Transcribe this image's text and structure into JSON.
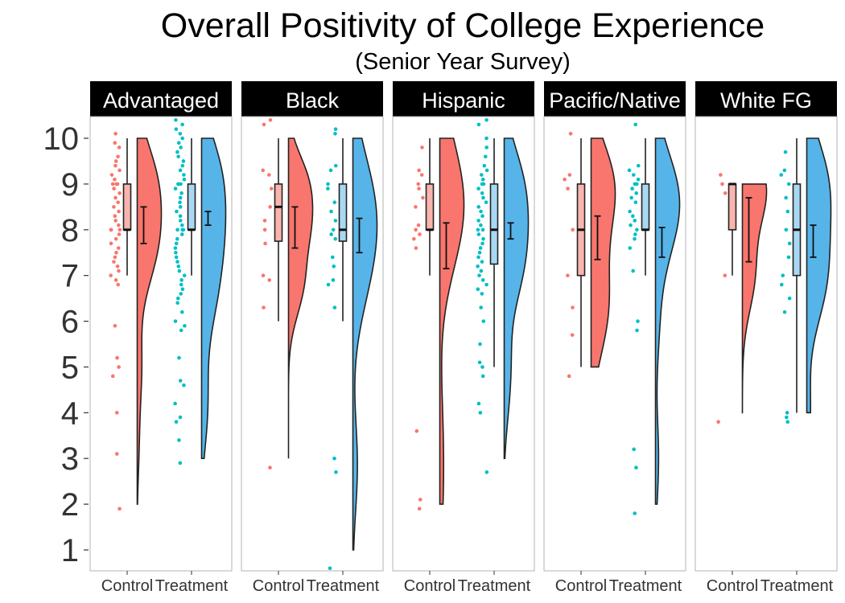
{
  "chart_data": {
    "type": "raincloud",
    "title": "Overall Positivity of College Experience",
    "subtitle": "(Senior Year Survey)",
    "xlabel": "",
    "ylabel": "",
    "ylim": [
      1,
      10
    ],
    "y_ticks": [
      "1",
      "2",
      "3",
      "4",
      "5",
      "6",
      "7",
      "8",
      "9",
      "10"
    ],
    "categories": [
      "Control",
      "Treatment"
    ],
    "grid": false,
    "colors": {
      "Control": "#F8766D",
      "Treatment": "#00BFC4",
      "Treatment_violin": "#56B4E9"
    },
    "panels": [
      {
        "name": "Advantaged",
        "groups": [
          {
            "group": "Control",
            "box": {
              "min": 7,
              "q1": 8,
              "median": 8,
              "q3": 9,
              "max": 10
            },
            "mean": 8.1,
            "ci": [
              7.7,
              8.5
            ],
            "range": [
              2,
              10
            ],
            "points": [
              10.1,
              9.9,
              9.8,
              9.6,
              9.5,
              9.4,
              9.3,
              9.2,
              9.1,
              9.0,
              9.0,
              9.0,
              8.9,
              8.8,
              8.7,
              8.6,
              8.5,
              8.4,
              8.3,
              8.2,
              8.1,
              8.0,
              8.0,
              8.0,
              7.9,
              7.8,
              7.7,
              7.6,
              7.5,
              7.4,
              7.3,
              7.2,
              7.1,
              7.0,
              6.9,
              6.8,
              5.9,
              5.2,
              5.0,
              4.8,
              4.0,
              3.1,
              1.9
            ]
          },
          {
            "group": "Treatment",
            "box": {
              "min": 7,
              "q1": 8,
              "median": 8,
              "q3": 9,
              "max": 10
            },
            "mean": 8.25,
            "ci": [
              8.1,
              8.4
            ],
            "range": [
              3,
              10
            ],
            "points": [
              10.4,
              10.3,
              10.2,
              10.1,
              10.0,
              9.9,
              9.8,
              9.7,
              9.6,
              9.5,
              9.4,
              9.3,
              9.2,
              9.1,
              9.0,
              9.0,
              9.0,
              8.9,
              8.8,
              8.7,
              8.6,
              8.5,
              8.4,
              8.3,
              8.2,
              8.1,
              8.0,
              8.0,
              8.0,
              7.9,
              7.8,
              7.7,
              7.6,
              7.5,
              7.4,
              7.3,
              7.2,
              7.1,
              7.0,
              6.9,
              6.8,
              6.7,
              6.6,
              6.5,
              6.4,
              6.2,
              6.0,
              5.9,
              5.8,
              5.2,
              4.7,
              4.6,
              4.2,
              3.9,
              3.8,
              3.4,
              2.9
            ]
          }
        ]
      },
      {
        "name": "Black",
        "groups": [
          {
            "group": "Control",
            "box": {
              "min": 6,
              "q1": 7.75,
              "median": 8.5,
              "q3": 9,
              "max": 10
            },
            "mean": 8.1,
            "ci": [
              7.6,
              8.5
            ],
            "range": [
              3,
              10
            ],
            "points": [
              10.4,
              10.3,
              9.3,
              9.2,
              8.9,
              8.5,
              8.2,
              8.0,
              7.7,
              7.0,
              6.9,
              6.3,
              2.8
            ]
          },
          {
            "group": "Treatment",
            "box": {
              "min": 6,
              "q1": 7.75,
              "median": 8,
              "q3": 9,
              "max": 10
            },
            "mean": 7.85,
            "ci": [
              7.5,
              8.25
            ],
            "range": [
              1,
              10
            ],
            "points": [
              10.2,
              10.1,
              9.4,
              9.3,
              9.0,
              8.9,
              8.6,
              8.4,
              8.2,
              8.0,
              7.9,
              7.8,
              7.4,
              7.2,
              6.9,
              6.8,
              6.3,
              3.0,
              2.7,
              0.6
            ]
          }
        ]
      },
      {
        "name": "Hispanic",
        "groups": [
          {
            "group": "Control",
            "box": {
              "min": 7,
              "q1": 8,
              "median": 8,
              "q3": 9,
              "max": 10
            },
            "mean": 7.65,
            "ci": [
              7.15,
              8.15
            ],
            "range": [
              2,
              10
            ],
            "points": [
              9.8,
              9.3,
              9.2,
              9.0,
              8.9,
              8.7,
              8.5,
              8.1,
              8.0,
              7.9,
              7.8,
              7.6,
              3.6,
              2.1,
              1.9
            ]
          },
          {
            "group": "Treatment",
            "box": {
              "min": 5,
              "q1": 7.25,
              "median": 8,
              "q3": 9,
              "max": 10
            },
            "mean": 7.95,
            "ci": [
              7.8,
              8.15
            ],
            "range": [
              3,
              10
            ],
            "points": [
              10.4,
              10.3,
              10.0,
              9.8,
              9.6,
              9.4,
              9.3,
              9.2,
              9.1,
              9.0,
              9.0,
              8.9,
              8.8,
              8.7,
              8.6,
              8.5,
              8.4,
              8.3,
              8.2,
              8.1,
              8.0,
              8.0,
              7.9,
              7.8,
              7.7,
              7.6,
              7.5,
              7.4,
              7.3,
              7.2,
              7.1,
              7.0,
              6.9,
              6.8,
              6.7,
              6.6,
              6.3,
              6.0,
              5.5,
              5.1,
              5.0,
              4.8,
              4.2,
              4.0,
              2.7
            ]
          }
        ]
      },
      {
        "name": "Pacific/Native",
        "groups": [
          {
            "group": "Control",
            "box": {
              "min": 5,
              "q1": 7,
              "median": 8,
              "q3": 9,
              "max": 10
            },
            "mean": 7.8,
            "ci": [
              7.35,
              8.3
            ],
            "range": [
              5,
              10
            ],
            "points": [
              10.1,
              9.2,
              9.1,
              8.9,
              8.0,
              7.0,
              6.3,
              5.7,
              4.8
            ]
          },
          {
            "group": "Treatment",
            "box": {
              "min": 7,
              "q1": 8,
              "median": 8,
              "q3": 9,
              "max": 10
            },
            "mean": 7.75,
            "ci": [
              7.4,
              8.05
            ],
            "range": [
              2,
              10
            ],
            "points": [
              10.3,
              9.4,
              9.3,
              9.2,
              9.1,
              9.0,
              9.0,
              8.9,
              8.8,
              8.7,
              8.6,
              8.4,
              8.3,
              8.2,
              8.1,
              8.0,
              7.9,
              7.8,
              7.6,
              7.1,
              6.0,
              5.8,
              3.2,
              2.8,
              1.8
            ]
          }
        ]
      },
      {
        "name": "White FG",
        "groups": [
          {
            "group": "Control",
            "box": {
              "min": 7,
              "q1": 8,
              "median": 9,
              "q3": 9,
              "max": 9
            },
            "mean": 8.0,
            "ci": [
              7.3,
              8.7
            ],
            "range": [
              4,
              9
            ],
            "points": [
              9.2,
              9.0,
              8.8,
              7.0,
              3.8
            ]
          },
          {
            "group": "Treatment",
            "box": {
              "min": 4,
              "q1": 7,
              "median": 8,
              "q3": 9,
              "max": 10
            },
            "mean": 7.75,
            "ci": [
              7.4,
              8.1
            ],
            "range": [
              4,
              10
            ],
            "points": [
              9.7,
              9.3,
              9.2,
              9.0,
              8.7,
              8.4,
              8.0,
              7.7,
              7.4,
              7.0,
              6.8,
              6.5,
              6.2,
              4.0,
              3.9,
              3.8
            ]
          }
        ]
      }
    ]
  }
}
